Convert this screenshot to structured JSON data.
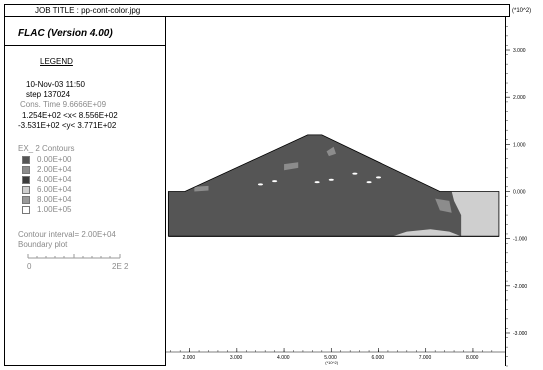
{
  "header": {
    "job_title": "JOB TITLE : pp-cont-color.jpg",
    "y_exponent": "(*10^2)"
  },
  "legend": {
    "program": "FLAC (Version 4.00)",
    "title": "LEGEND",
    "date": "10-Nov-03 11:50",
    "step": "step  137024",
    "cons_time": "Cons. Time   9.6666E+09",
    "x_range": "1.254E+02 <x< 8.556E+02",
    "y_range": "-3.531E+02 <y< 3.771E+02",
    "contours_title": "EX_ 2 Contours",
    "contour_levels": [
      {
        "label": "0.00E+00",
        "color": "#555555"
      },
      {
        "label": "2.00E+04",
        "color": "#8c8c8c"
      },
      {
        "label": "4.00E+04",
        "color": "#3b3b3b"
      },
      {
        "label": "6.00E+04",
        "color": "#cfcfcf"
      },
      {
        "label": "8.00E+04",
        "color": "#9a9a9a"
      },
      {
        "label": "1.00E+05",
        "color": "#ffffff"
      }
    ],
    "contour_interval": "Contour interval=  2.00E+04",
    "boundary_plot": "Boundary plot",
    "scale_min": "0",
    "scale_max": "2E  2"
  },
  "chart_data": {
    "type": "heatmap",
    "x_exponent": "(*10^2)",
    "y_exponent": "(*10^2)",
    "xlim": [
      1.5,
      8.7
    ],
    "ylim": [
      -3.7,
      3.7
    ],
    "x_ticks": [
      "2.000",
      "3.000",
      "4.000",
      "5.000",
      "6.000",
      "7.000",
      "8.000"
    ],
    "y_ticks": [
      "3.000",
      "2.000",
      "1.000",
      "0.000",
      "-1.000",
      "-2.000",
      "-3.000"
    ],
    "x_tick_values": [
      2,
      3,
      4,
      5,
      6,
      7,
      8
    ],
    "y_tick_values": [
      3,
      2,
      1,
      0,
      -1,
      -2,
      -3
    ],
    "boundary": {
      "x_min": 1.55,
      "x_max": 8.55,
      "y_base": -0.95,
      "y_top": 0,
      "crest": [
        4.6,
        1.2
      ],
      "left_toe": [
        1.55,
        0
      ],
      "right_toe": [
        7.3,
        0
      ]
    }
  }
}
